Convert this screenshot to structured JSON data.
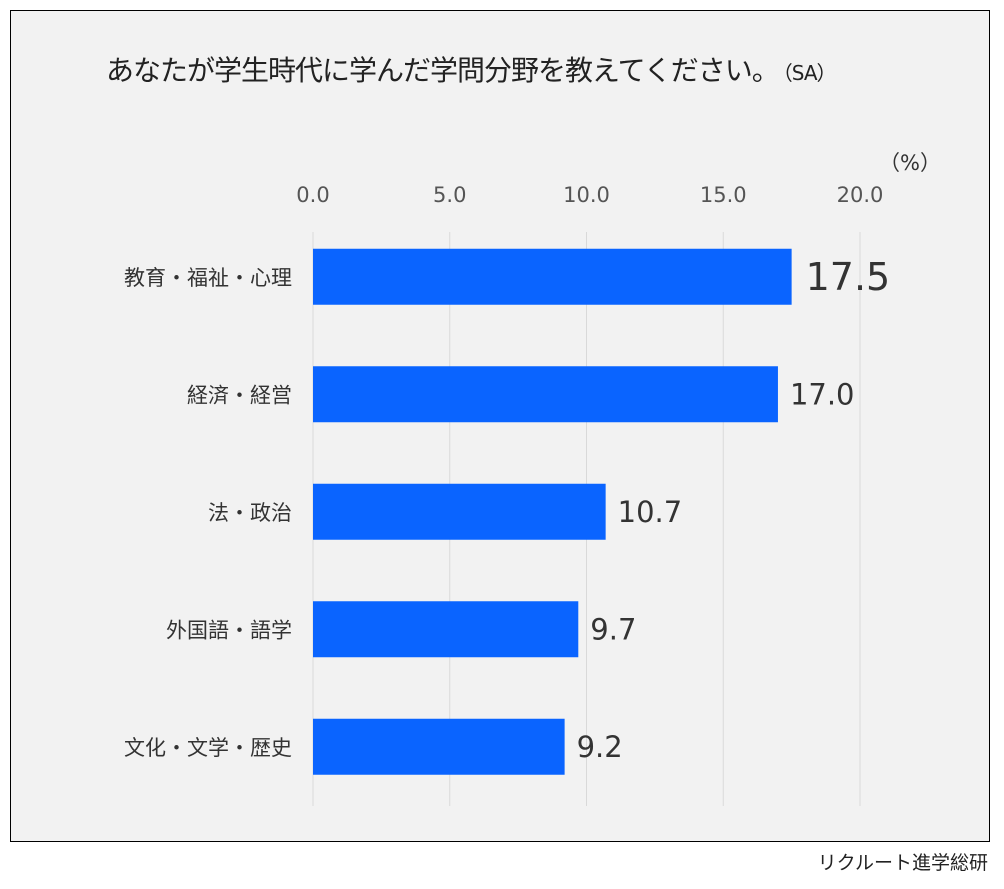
{
  "title": "あなたが学生時代に学んだ学問分野を教えてください。",
  "title_note": "（SA）",
  "unit_label": "（%）",
  "source": "リクルート進学総研",
  "colors": {
    "bar": "#0a64ff",
    "background": "#f2f2f2",
    "grid": "#d9d9d9"
  },
  "chart_data": {
    "type": "bar",
    "orientation": "horizontal",
    "categories": [
      "教育・福祉・心理",
      "経済・経営",
      "法・政治",
      "外国語・語学",
      "文化・文学・歴史"
    ],
    "values": [
      17.5,
      17.0,
      10.7,
      9.7,
      9.2
    ],
    "value_labels": [
      "17.5",
      "17.0",
      "10.7",
      "9.7",
      "9.2"
    ],
    "xlim": [
      0,
      20
    ],
    "ticks": [
      "0.0",
      "5.0",
      "10.0",
      "15.0",
      "20.0"
    ],
    "tick_values": [
      0,
      5,
      10,
      15,
      20
    ],
    "axis_position": "top",
    "grid": true
  }
}
